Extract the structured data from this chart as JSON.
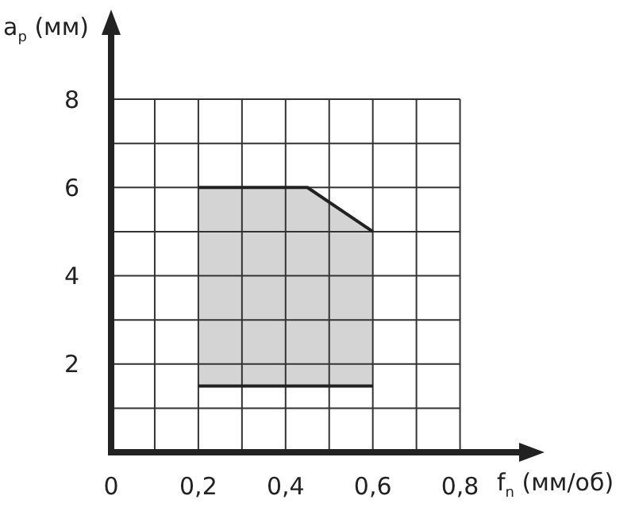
{
  "chart_data": {
    "type": "line",
    "xlabel": "f$_{n}$ (мм/об)",
    "ylabel": "a$_{p}$ (мм)",
    "xlim": [
      0,
      0.95
    ],
    "ylim": [
      0,
      9.6
    ],
    "xticks": [
      0,
      {
        "value": 0.1,
        "label": null
      },
      {
        "value": 0.2,
        "label": "0,2"
      },
      {
        "value": 0.3,
        "label": null
      },
      {
        "value": 0.4,
        "label": "0,4"
      },
      {
        "value": 0.5,
        "label": null
      },
      {
        "value": 0.6,
        "label": "0,6"
      },
      {
        "value": 0.7,
        "label": null
      },
      {
        "value": 0.8,
        "label": "0,8"
      }
    ],
    "yticks": [
      {
        "value": 1,
        "label": null
      },
      2,
      {
        "value": 3,
        "label": null
      },
      4,
      {
        "value": 5,
        "label": null
      },
      6,
      {
        "value": 7,
        "label": null
      },
      8
    ],
    "grid": true,
    "series": [
      {
        "color": "#222222",
        "x": [
          0.2,
          0.45,
          0.6
        ],
        "values": [
          6,
          6,
          5
        ],
        "lower": [
          1.5,
          1.5,
          1.5
        ],
        "upper": [
          6,
          6,
          5
        ]
      },
      {
        "color": "#222222",
        "x": [
          0.2,
          0.6
        ],
        "values": [
          1.5,
          1.5
        ]
      }
    ]
  }
}
